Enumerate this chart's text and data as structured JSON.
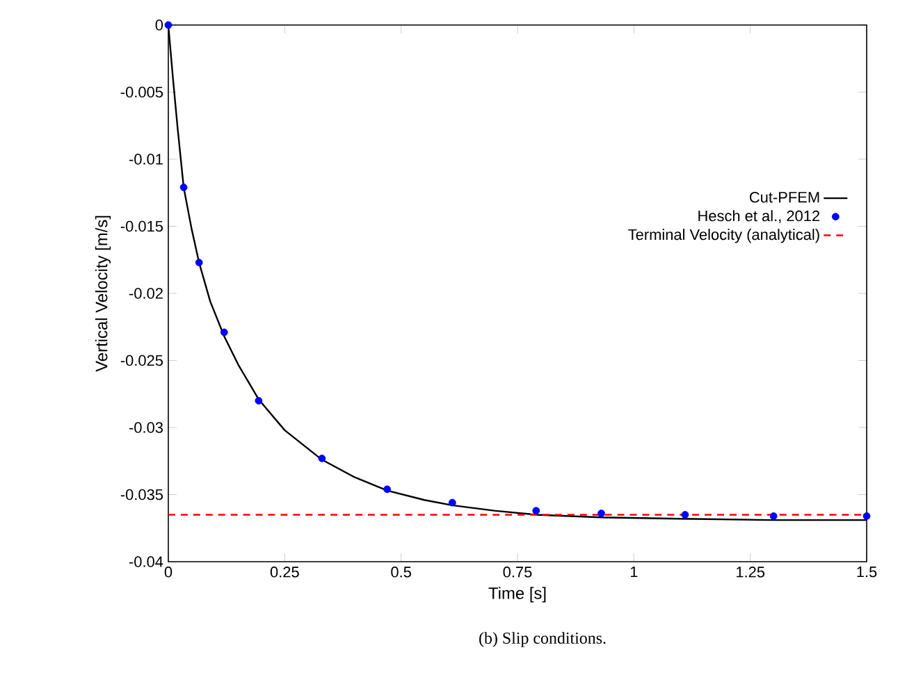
{
  "chart_data": {
    "type": "line",
    "xlabel": "Time [s]",
    "ylabel": "Vertical Velocity [m/s]",
    "xlim": [
      0,
      1.5
    ],
    "ylim": [
      -0.04,
      0
    ],
    "xticks": [
      0,
      0.25,
      0.5,
      0.75,
      1,
      1.25,
      1.5
    ],
    "yticks": [
      -0.04,
      -0.035,
      -0.03,
      -0.025,
      -0.02,
      -0.015,
      -0.01,
      -0.005,
      0
    ],
    "legend": "top right",
    "grid": false,
    "series": [
      {
        "name": "Cut-PFEM",
        "color": "#000000",
        "marker": "none",
        "line_style": "solid",
        "x": [
          0,
          0.01,
          0.02,
          0.033,
          0.05,
          0.066,
          0.09,
          0.12,
          0.15,
          0.194,
          0.25,
          0.33,
          0.4,
          0.47,
          0.55,
          0.61,
          0.7,
          0.79,
          0.93,
          1.1,
          1.3,
          1.5
        ],
        "values": [
          0,
          -0.004,
          -0.0077,
          -0.0121,
          -0.0152,
          -0.0177,
          -0.0206,
          -0.0232,
          -0.0253,
          -0.0279,
          -0.0302,
          -0.0324,
          -0.0337,
          -0.0347,
          -0.0354,
          -0.0358,
          -0.0362,
          -0.0365,
          -0.0367,
          -0.0368,
          -0.0369,
          -0.0369
        ]
      },
      {
        "name": "Hesch et al., 2012",
        "type": "scatter",
        "color": "#0000ff",
        "marker": "circle",
        "x": [
          0,
          0.033,
          0.066,
          0.12,
          0.194,
          0.33,
          0.47,
          0.61,
          0.79,
          0.93,
          1.11,
          1.3,
          1.5
        ],
        "values": [
          0,
          -0.0121,
          -0.0177,
          -0.0229,
          -0.028,
          -0.0323,
          -0.0346,
          -0.0356,
          -0.0362,
          -0.0364,
          -0.0365,
          -0.0366,
          -0.0366
        ]
      },
      {
        "name": "Terminal Velocity (analytical)",
        "color": "#ff0000",
        "marker": "none",
        "line_style": "dashed",
        "x": [
          0,
          1.5
        ],
        "values": [
          -0.0365,
          -0.0365
        ]
      }
    ],
    "annotations": [
      "(b) Slip conditions."
    ]
  }
}
